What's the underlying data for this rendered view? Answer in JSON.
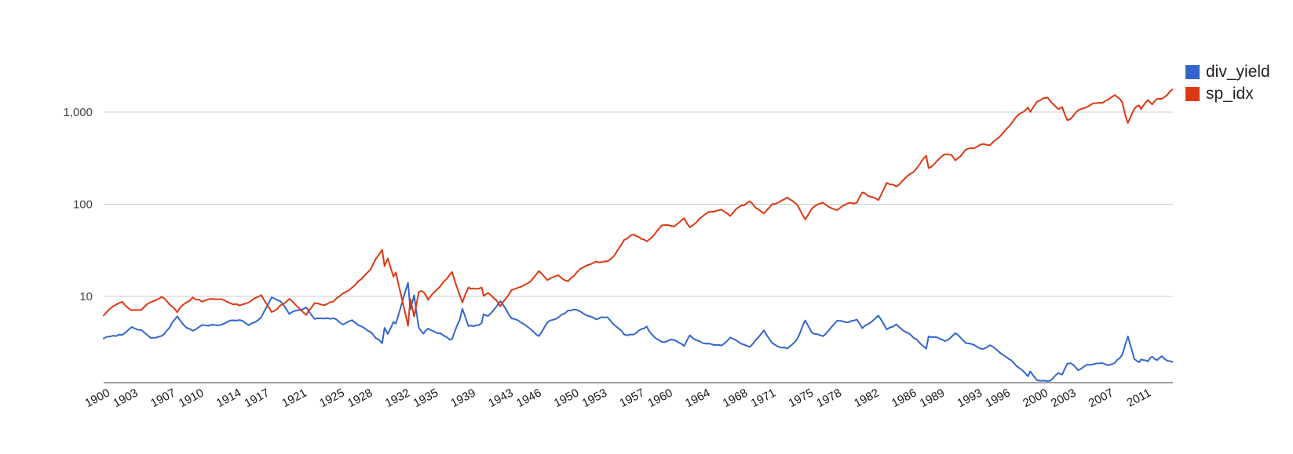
{
  "chart": {
    "background_color": "#ffffff",
    "gridline_color": "#cccccc",
    "baseline_color": "#9e9e9e",
    "axis_label_color": "#444444",
    "x_label_color": "#1a1a1a"
  },
  "legend": {
    "position": "right",
    "items": [
      {
        "label": "div_yield",
        "color": "#3366cc"
      },
      {
        "label": "sp_idx",
        "color": "#dc3912"
      }
    ]
  },
  "chart_data": {
    "type": "line",
    "title": "",
    "xlabel": "",
    "ylabel": "",
    "y_scale": "log",
    "grid": true,
    "legend_position": "right",
    "x_range": [
      1900,
      2014
    ],
    "y_baseline_value": 1.16,
    "y_axis_tick_labels": [
      "1,000",
      "100",
      "10"
    ],
    "y_axis_tick_values": [
      1000,
      100,
      10
    ],
    "x_axis_tick_labels": [
      "1900",
      "1903",
      "1907",
      "1910",
      "1914",
      "1917",
      "1921",
      "1925",
      "1928",
      "1932",
      "1935",
      "1939",
      "1943",
      "1946",
      "1950",
      "1953",
      "1957",
      "1960",
      "1964",
      "1968",
      "1971",
      "1975",
      "1978",
      "1982",
      "1986",
      "1989",
      "1993",
      "1996",
      "2000",
      "2003",
      "2007",
      "2011"
    ],
    "series": [
      {
        "name": "div_yield",
        "color": "#3366cc"
      },
      {
        "name": "sp_idx",
        "color": "#dc3912"
      }
    ],
    "columns": [
      "year",
      "div_yield",
      "sp_idx"
    ],
    "points": [
      [
        1900,
        3.5,
        6.2
      ],
      [
        1901,
        3.8,
        7.8
      ],
      [
        1902,
        3.9,
        8.4
      ],
      [
        1903,
        4.5,
        6.9
      ],
      [
        1904,
        4.4,
        7.1
      ],
      [
        1905,
        3.6,
        8.7
      ],
      [
        1906.2,
        3.8,
        9.9
      ],
      [
        1907,
        4.6,
        8.3
      ],
      [
        1907.85,
        6.2,
        6.6
      ],
      [
        1908.5,
        4.9,
        8.0
      ],
      [
        1909.5,
        4.2,
        9.7
      ],
      [
        1910.5,
        4.7,
        8.9
      ],
      [
        1911.5,
        4.8,
        9.3
      ],
      [
        1912.5,
        4.9,
        9.6
      ],
      [
        1913.5,
        5.4,
        8.7
      ],
      [
        1914.5,
        5.5,
        8.2
      ],
      [
        1915.5,
        4.9,
        8.4
      ],
      [
        1916.8,
        5.9,
        10.0
      ],
      [
        1917.9,
        9.8,
        6.8
      ],
      [
        1918.8,
        8.7,
        8.0
      ],
      [
        1919.8,
        6.4,
        9.4
      ],
      [
        1920.5,
        6.9,
        7.9
      ],
      [
        1921.6,
        7.6,
        6.5
      ],
      [
        1922.5,
        5.8,
        8.7
      ],
      [
        1923.5,
        6.0,
        8.4
      ],
      [
        1924.5,
        5.9,
        9.2
      ],
      [
        1925.5,
        5.1,
        11.3
      ],
      [
        1926.5,
        5.4,
        12.6
      ],
      [
        1927.5,
        4.7,
        15.6
      ],
      [
        1928.5,
        4.1,
        19.0
      ],
      [
        1929,
        3.5,
        24.9
      ],
      [
        1929.7,
        3.1,
        31.3
      ],
      [
        1929.95,
        4.5,
        21.4
      ],
      [
        1930.3,
        3.9,
        25.3
      ],
      [
        1930.9,
        5.3,
        16.0
      ],
      [
        1931.15,
        5.0,
        18.0
      ],
      [
        1931.9,
        9.0,
        8.5
      ],
      [
        1932.45,
        13.8,
        4.8
      ],
      [
        1932.7,
        7.2,
        9.3
      ],
      [
        1933.1,
        10.4,
        5.9
      ],
      [
        1933.6,
        4.6,
        10.9
      ],
      [
        1934.1,
        4.0,
        11.0
      ],
      [
        1934.6,
        4.5,
        9.3
      ],
      [
        1935.9,
        4.0,
        13.0
      ],
      [
        1936.9,
        3.5,
        17.2
      ],
      [
        1937.15,
        3.6,
        18.1
      ],
      [
        1937.95,
        5.6,
        10.6
      ],
      [
        1938.25,
        7.6,
        8.9
      ],
      [
        1938.9,
        4.9,
        12.8
      ],
      [
        1939.7,
        4.9,
        12.2
      ],
      [
        1940.3,
        5.2,
        12.2
      ],
      [
        1940.5,
        6.6,
        9.9
      ],
      [
        1941,
        6.4,
        10.5
      ],
      [
        1941.9,
        7.8,
        9.0
      ],
      [
        1942.3,
        8.7,
        7.8
      ],
      [
        1943.5,
        5.6,
        11.8
      ],
      [
        1944.5,
        5.2,
        12.5
      ],
      [
        1945.5,
        4.4,
        15.1
      ],
      [
        1946.4,
        3.6,
        18.5
      ],
      [
        1947.3,
        5.1,
        14.9
      ],
      [
        1948.5,
        5.9,
        16.2
      ],
      [
        1949.5,
        6.9,
        14.2
      ],
      [
        1950.5,
        7.1,
        18.0
      ],
      [
        1951.5,
        6.2,
        22.0
      ],
      [
        1952.5,
        5.6,
        24.5
      ],
      [
        1953.7,
        5.9,
        23.9
      ],
      [
        1954.5,
        4.9,
        29.2
      ],
      [
        1955.5,
        3.9,
        41.2
      ],
      [
        1956.5,
        3.8,
        47.6
      ],
      [
        1957.9,
        4.7,
        40.3
      ],
      [
        1958.5,
        3.8,
        45.8
      ],
      [
        1959.5,
        3.2,
        58.0
      ],
      [
        1960.8,
        3.4,
        55.4
      ],
      [
        1961.9,
        2.8,
        71.0
      ],
      [
        1962.5,
        3.7,
        56.5
      ],
      [
        1963.5,
        3.2,
        70.0
      ],
      [
        1964.5,
        3.0,
        81.7
      ],
      [
        1965.9,
        2.9,
        91.6
      ],
      [
        1966.8,
        3.7,
        77.8
      ],
      [
        1967.7,
        3.1,
        95.3
      ],
      [
        1968.9,
        2.9,
        106.5
      ],
      [
        1970.4,
        4.2,
        76.1
      ],
      [
        1971.3,
        3.1,
        100.8
      ],
      [
        1972.9,
        2.7,
        117.5
      ],
      [
        1974,
        3.6,
        93.0
      ],
      [
        1974.8,
        5.6,
        67.1
      ],
      [
        1975.5,
        4.1,
        90.2
      ],
      [
        1976.7,
        3.8,
        103.8
      ],
      [
        1978.2,
        5.4,
        88.9
      ],
      [
        1979.5,
        5.3,
        102.9
      ],
      [
        1980.3,
        5.6,
        104.7
      ],
      [
        1980.9,
        4.6,
        133.5
      ],
      [
        1982.6,
        6.2,
        109.6
      ],
      [
        1983.5,
        4.3,
        166.4
      ],
      [
        1984.5,
        4.8,
        153.1
      ],
      [
        1985.5,
        4.2,
        189.6
      ],
      [
        1986.7,
        3.4,
        245.0
      ],
      [
        1987.7,
        2.7,
        329.4
      ],
      [
        1987.95,
        3.6,
        245.0
      ],
      [
        1988.5,
        3.6,
        266.7
      ],
      [
        1989.7,
        3.2,
        347.3
      ],
      [
        1990.4,
        3.6,
        354.6
      ],
      [
        1990.8,
        4.0,
        307.1
      ],
      [
        1991.9,
        3.1,
        385.9
      ],
      [
        1992.8,
        2.9,
        416.8
      ],
      [
        1993.8,
        2.7,
        463.9
      ],
      [
        1994.5,
        2.9,
        451.3
      ],
      [
        1995.5,
        2.5,
        544.8
      ],
      [
        1996.5,
        2.2,
        668.5
      ],
      [
        1997.6,
        1.7,
        925.3
      ],
      [
        1998.55,
        1.4,
        1108.4
      ],
      [
        1998.8,
        1.55,
        1017.0
      ],
      [
        1999.5,
        1.22,
        1332.8
      ],
      [
        2000.2,
        1.18,
        1442.2
      ],
      [
        2000.65,
        1.16,
        1485.5
      ],
      [
        2001.2,
        1.25,
        1234.2
      ],
      [
        2001.8,
        1.45,
        1059.8
      ],
      [
        2002.2,
        1.4,
        1131.8
      ],
      [
        2002.75,
        1.85,
        815.3
      ],
      [
        2003.1,
        1.9,
        837.0
      ],
      [
        2003.9,
        1.6,
        1049.9
      ],
      [
        2004.8,
        1.75,
        1130.5
      ],
      [
        2005.5,
        1.85,
        1222.2
      ],
      [
        2006.5,
        1.85,
        1270.2
      ],
      [
        2007.4,
        1.8,
        1463.7
      ],
      [
        2007.8,
        1.85,
        1539.7
      ],
      [
        2008.6,
        2.3,
        1281.5
      ],
      [
        2008.95,
        3.0,
        910.0
      ],
      [
        2009.2,
        3.6,
        757.1
      ],
      [
        2009.9,
        2.05,
        1088.1
      ],
      [
        2010.4,
        1.9,
        1197.3
      ],
      [
        2010.6,
        2.1,
        1080.0
      ],
      [
        2011.35,
        1.95,
        1338.3
      ],
      [
        2011.8,
        2.2,
        1173.9
      ],
      [
        2012.3,
        2.05,
        1386.4
      ],
      [
        2012.8,
        2.2,
        1437.8
      ],
      [
        2013.4,
        2.05,
        1609.5
      ],
      [
        2013.95,
        1.95,
        1800.0
      ]
    ]
  }
}
